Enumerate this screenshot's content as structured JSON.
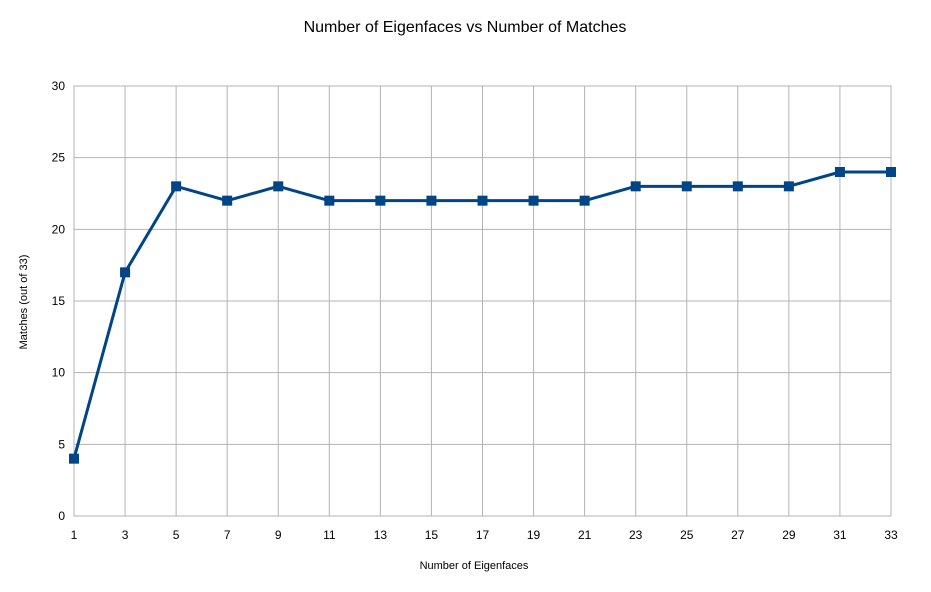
{
  "chart_data": {
    "type": "line",
    "title": "Number of Eigenfaces vs Number of Matches",
    "xlabel": "Number of Eigenfaces",
    "ylabel": "Matches (out of 33)",
    "x": [
      1,
      3,
      5,
      7,
      9,
      11,
      13,
      15,
      17,
      19,
      21,
      23,
      25,
      27,
      29,
      31,
      33
    ],
    "series": [
      {
        "values": [
          4,
          17,
          23,
          22,
          23,
          22,
          22,
          22,
          22,
          22,
          22,
          23,
          23,
          23,
          23,
          24,
          24
        ],
        "color": "#004586",
        "marker": "square"
      }
    ],
    "xlim": [
      1,
      33
    ],
    "ylim": [
      0,
      30
    ],
    "yticks": [
      0,
      5,
      10,
      15,
      20,
      25,
      30
    ],
    "xticks": [
      1,
      3,
      5,
      7,
      9,
      11,
      13,
      15,
      17,
      19,
      21,
      23,
      25,
      27,
      29,
      31,
      33
    ],
    "grid": true,
    "legend": "none",
    "gridColor": "#b3b3b3"
  }
}
